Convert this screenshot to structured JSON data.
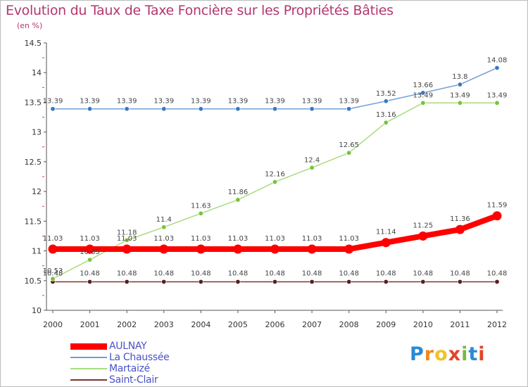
{
  "header": {
    "title": "Evolution du Taux de Taxe Foncière sur les Propriétés Bâties",
    "subtitle": "(en %)"
  },
  "chart_data": {
    "type": "line",
    "title": "Evolution du Taux de Taxe Foncière sur les Propriétés Bâties",
    "ylabel": "(en %)",
    "xlabel": "",
    "x": [
      "2000",
      "2001",
      "2002",
      "2003",
      "2004",
      "2005",
      "2006",
      "2007",
      "2008",
      "2009",
      "2010",
      "2011",
      "2012"
    ],
    "ylim": [
      10,
      14.5
    ],
    "yticks": [
      "10",
      "10.5",
      "11",
      "11.5",
      "12",
      "12.5",
      "13",
      "13.5",
      "14",
      "14.5"
    ],
    "grid": false,
    "legend_position": "bottom-left",
    "series": [
      {
        "name": "AULNAY",
        "color": "#ff0000",
        "values": [
          11.03,
          11.03,
          11.03,
          11.03,
          11.03,
          11.03,
          11.03,
          11.03,
          11.03,
          11.14,
          11.25,
          11.36,
          11.59
        ],
        "labels": [
          "11.03",
          "11.03",
          "11.03",
          "11.03",
          "11.03",
          "11.03",
          "11.03",
          "11.03",
          "11.03",
          "11.14",
          "11.25",
          "11.36",
          "11.59"
        ]
      },
      {
        "name": "La Chaussée",
        "color": "#6f9fd8",
        "values": [
          13.39,
          13.39,
          13.39,
          13.39,
          13.39,
          13.39,
          13.39,
          13.39,
          13.39,
          13.52,
          13.66,
          13.8,
          14.08
        ],
        "labels": [
          "13.39",
          "13.39",
          "13.39",
          "13.39",
          "13.39",
          "13.39",
          "13.39",
          "13.39",
          "13.39",
          "13.52",
          "13.66",
          "13.8",
          "14.08"
        ]
      },
      {
        "name": "Martaizé",
        "color": "#a9dc7e",
        "values": [
          10.53,
          10.85,
          11.18,
          11.4,
          11.63,
          11.86,
          12.16,
          12.4,
          12.65,
          13.16,
          13.49,
          13.49,
          13.49
        ],
        "labels": [
          "10.53",
          "10.85",
          "11.18",
          "11.4",
          "11.63",
          "11.86",
          "12.16",
          "12.4",
          "12.65",
          "13.16",
          "13.49",
          "13.49",
          "13.49"
        ]
      },
      {
        "name": "Saint-Clair",
        "color": "#7a3434",
        "values": [
          10.48,
          10.48,
          10.48,
          10.48,
          10.48,
          10.48,
          10.48,
          10.48,
          10.48,
          10.48,
          10.48,
          10.48,
          10.48
        ],
        "labels": [
          "10.48",
          "10.48",
          "10.48",
          "10.48",
          "10.48",
          "10.48",
          "10.48",
          "10.48",
          "10.48",
          "10.48",
          "10.48",
          "10.48",
          "10.48"
        ]
      }
    ]
  },
  "legend": {
    "items": [
      "AULNAY",
      "La Chaussée",
      "Martaizé",
      "Saint-Clair"
    ]
  },
  "logo": {
    "letters": [
      "P",
      "r",
      "o",
      "x",
      "i",
      "t",
      "i"
    ],
    "colors": [
      "#2a8ad4",
      "#f08a1c",
      "#f2c229",
      "#e0462a",
      "#7ab83a",
      "#2a8ad4",
      "#e0462a"
    ]
  }
}
